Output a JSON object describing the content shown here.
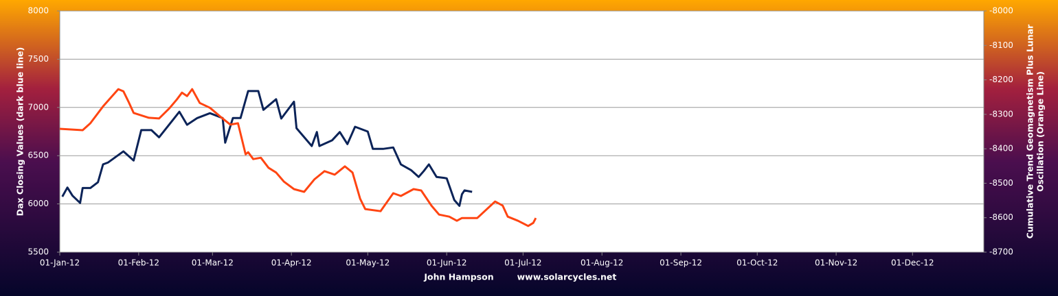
{
  "chart_data": {
    "type": "line",
    "ylabel": "Dax Closing  Values (dark blue line)",
    "y2label": [
      "Cumulative Trend Geomagnetism Plus Lunar",
      "Oscillation (Orange Line)"
    ],
    "annotations": [
      "John Hampson",
      "www.solarcycles.net"
    ],
    "xlim": [
      "2012-01-01",
      "2012-12-29"
    ],
    "xticks": [
      {
        "value": "2012-01-01",
        "label": "01-Jan-12"
      },
      {
        "value": "2012-02-01",
        "label": "01-Feb-12"
      },
      {
        "value": "2012-03-01",
        "label": "01-Mar-12"
      },
      {
        "value": "2012-04-01",
        "label": "01-Apr-12"
      },
      {
        "value": "2012-05-01",
        "label": "01-May-12"
      },
      {
        "value": "2012-06-01",
        "label": "01-Jun-12"
      },
      {
        "value": "2012-07-01",
        "label": "01-Jul-12"
      },
      {
        "value": "2012-08-01",
        "label": "01-Aug-12"
      },
      {
        "value": "2012-09-01",
        "label": "01-Sep-12"
      },
      {
        "value": "2012-10-01",
        "label": "01-Oct-12"
      },
      {
        "value": "2012-11-01",
        "label": "01-Nov-12"
      },
      {
        "value": "2012-12-01",
        "label": "01-Dec-12"
      }
    ],
    "ylim": [
      5500,
      8000
    ],
    "yticks": [
      5500,
      6000,
      6500,
      7000,
      7500,
      8000
    ],
    "y2lim": [
      -8700,
      -8000
    ],
    "y2ticks": [
      -8700,
      -8600,
      -8500,
      -8400,
      -8300,
      -8200,
      -8100,
      -8000
    ],
    "grid": true,
    "series": [
      {
        "name": "Dax Closing Values",
        "color": "#0b2358",
        "axis": "y",
        "x": [
          "2012-01-02",
          "2012-01-04",
          "2012-01-06",
          "2012-01-09",
          "2012-01-10",
          "2012-01-13",
          "2012-01-16",
          "2012-01-18",
          "2012-01-20",
          "2012-01-26",
          "2012-01-30",
          "2012-02-02",
          "2012-02-06",
          "2012-02-09",
          "2012-02-17",
          "2012-02-20",
          "2012-02-24",
          "2012-02-29",
          "2012-03-05",
          "2012-03-06",
          "2012-03-09",
          "2012-03-12",
          "2012-03-15",
          "2012-03-19",
          "2012-03-21",
          "2012-03-26",
          "2012-03-28",
          "2012-04-02",
          "2012-04-03",
          "2012-04-09",
          "2012-04-11",
          "2012-04-12",
          "2012-04-17",
          "2012-04-20",
          "2012-04-23",
          "2012-04-26",
          "2012-05-01",
          "2012-05-03",
          "2012-05-07",
          "2012-05-11",
          "2012-05-14",
          "2012-05-18",
          "2012-05-21",
          "2012-05-23",
          "2012-05-25",
          "2012-05-28",
          "2012-05-31",
          "2012-06-01",
          "2012-06-04",
          "2012-06-06",
          "2012-06-07",
          "2012-06-08",
          "2012-06-11"
        ],
        "values": [
          6075,
          6170,
          6085,
          6010,
          6165,
          6165,
          6225,
          6410,
          6430,
          6545,
          6450,
          6765,
          6765,
          6690,
          6955,
          6820,
          6890,
          6940,
          6890,
          6635,
          6890,
          6890,
          7170,
          7170,
          6975,
          7085,
          6885,
          7060,
          6785,
          6600,
          6745,
          6600,
          6660,
          6745,
          6620,
          6800,
          6750,
          6570,
          6570,
          6585,
          6410,
          6350,
          6280,
          6340,
          6410,
          6280,
          6270,
          6265,
          6040,
          5980,
          6100,
          6140,
          6125
        ]
      },
      {
        "name": "Cumulative Trend Geomagnetism Plus Lunar Oscillation",
        "color": "#ff4512",
        "axis": "y2",
        "x": [
          "2012-01-01",
          "2012-01-10",
          "2012-01-13",
          "2012-01-18",
          "2012-01-24",
          "2012-01-26",
          "2012-01-28",
          "2012-01-30",
          "2012-02-05",
          "2012-02-09",
          "2012-02-13",
          "2012-02-16",
          "2012-02-18",
          "2012-02-20",
          "2012-02-22",
          "2012-02-25",
          "2012-02-29",
          "2012-03-04",
          "2012-03-08",
          "2012-03-11",
          "2012-03-14",
          "2012-03-15",
          "2012-03-17",
          "2012-03-20",
          "2012-03-23",
          "2012-03-26",
          "2012-03-29",
          "2012-04-02",
          "2012-04-06",
          "2012-04-10",
          "2012-04-14",
          "2012-04-18",
          "2012-04-22",
          "2012-04-25",
          "2012-04-28",
          "2012-04-30",
          "2012-05-06",
          "2012-05-11",
          "2012-05-14",
          "2012-05-19",
          "2012-05-22",
          "2012-05-26",
          "2012-05-29",
          "2012-06-02",
          "2012-06-05",
          "2012-06-07",
          "2012-06-13",
          "2012-06-20",
          "2012-06-23",
          "2012-06-25",
          "2012-06-29",
          "2012-07-03",
          "2012-07-05",
          "2012-07-06"
        ],
        "values": [
          -8342,
          -8346,
          -8326,
          -8277,
          -8227,
          -8233,
          -8263,
          -8296,
          -8310,
          -8312,
          -8283,
          -8257,
          -8237,
          -8247,
          -8227,
          -8267,
          -8281,
          -8306,
          -8330,
          -8326,
          -8416,
          -8410,
          -8430,
          -8426,
          -8455,
          -8469,
          -8495,
          -8517,
          -8525,
          -8489,
          -8465,
          -8475,
          -8451,
          -8469,
          -8545,
          -8575,
          -8581,
          -8529,
          -8537,
          -8517,
          -8521,
          -8565,
          -8591,
          -8597,
          -8609,
          -8601,
          -8601,
          -8553,
          -8565,
          -8597,
          -8609,
          -8624,
          -8615,
          -8601
        ]
      }
    ]
  }
}
